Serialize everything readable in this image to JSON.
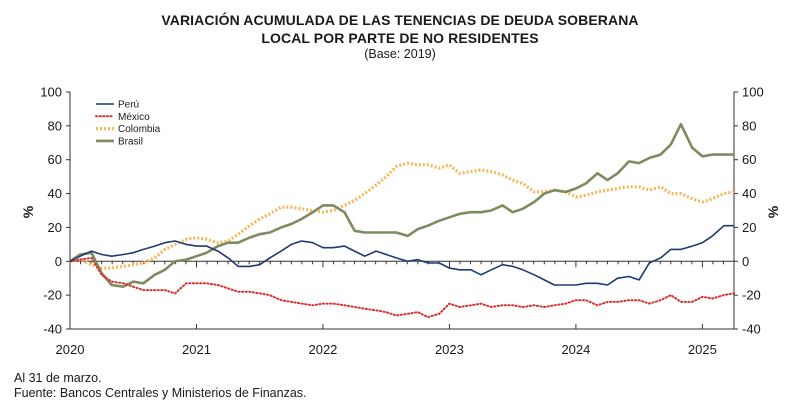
{
  "header": {
    "title_line1": "VARIACIÓN ACUMULADA DE LAS TENENCIAS DE DEUDA SOBERANA",
    "title_line2": "LOCAL POR PARTE DE NO RESIDENTES",
    "subtitle": "(Base: 2019)"
  },
  "footer": {
    "note": "Al 31 de marzo.",
    "source": "Fuente: Bancos Centrales y Ministerios de Finanzas."
  },
  "chart_data": {
    "type": "line",
    "ylabel_left": "%",
    "ylabel_right": "%",
    "ylim": [
      -40,
      100
    ],
    "yticks": [
      -40,
      -20,
      0,
      20,
      40,
      60,
      80,
      100
    ],
    "xlim": [
      2020.0,
      2025.25
    ],
    "x_ticks": [
      {
        "label": "2020",
        "x": 2020.0
      },
      {
        "label": "2021",
        "x": 2021.0
      },
      {
        "label": "2022",
        "x": 2022.0
      },
      {
        "label": "2023",
        "x": 2023.0
      },
      {
        "label": "2024",
        "x": 2024.0
      },
      {
        "label": "2025",
        "x": 2025.0
      }
    ],
    "grid": false,
    "legend_position": "top-left",
    "series": [
      {
        "name": "Perú",
        "color": "#1f3a75",
        "style": "solid",
        "points": [
          [
            2020.0,
            0
          ],
          [
            2020.08,
            3
          ],
          [
            2020.17,
            6
          ],
          [
            2020.25,
            4
          ],
          [
            2020.33,
            3
          ],
          [
            2020.42,
            4
          ],
          [
            2020.5,
            5
          ],
          [
            2020.58,
            7
          ],
          [
            2020.67,
            9
          ],
          [
            2020.75,
            11
          ],
          [
            2020.83,
            12
          ],
          [
            2020.92,
            10
          ],
          [
            2021.0,
            9
          ],
          [
            2021.08,
            9
          ],
          [
            2021.17,
            6
          ],
          [
            2021.25,
            2
          ],
          [
            2021.33,
            -3
          ],
          [
            2021.42,
            -3
          ],
          [
            2021.5,
            -2
          ],
          [
            2021.58,
            2
          ],
          [
            2021.67,
            6
          ],
          [
            2021.75,
            10
          ],
          [
            2021.83,
            12
          ],
          [
            2021.92,
            11
          ],
          [
            2022.0,
            8
          ],
          [
            2022.08,
            8
          ],
          [
            2022.17,
            9
          ],
          [
            2022.25,
            6
          ],
          [
            2022.33,
            3
          ],
          [
            2022.42,
            6
          ],
          [
            2022.5,
            4
          ],
          [
            2022.58,
            2
          ],
          [
            2022.67,
            0
          ],
          [
            2022.75,
            1
          ],
          [
            2022.83,
            -1
          ],
          [
            2022.92,
            -1
          ],
          [
            2023.0,
            -4
          ],
          [
            2023.08,
            -5
          ],
          [
            2023.17,
            -5
          ],
          [
            2023.25,
            -8
          ],
          [
            2023.33,
            -5
          ],
          [
            2023.42,
            -2
          ],
          [
            2023.5,
            -3
          ],
          [
            2023.58,
            -5
          ],
          [
            2023.67,
            -8
          ],
          [
            2023.75,
            -11
          ],
          [
            2023.83,
            -14
          ],
          [
            2023.92,
            -14
          ],
          [
            2024.0,
            -14
          ],
          [
            2024.08,
            -13
          ],
          [
            2024.17,
            -13
          ],
          [
            2024.25,
            -14
          ],
          [
            2024.33,
            -10
          ],
          [
            2024.42,
            -9
          ],
          [
            2024.5,
            -11
          ],
          [
            2024.58,
            -1
          ],
          [
            2024.67,
            2
          ],
          [
            2024.75,
            7
          ],
          [
            2024.83,
            7
          ],
          [
            2024.92,
            9
          ],
          [
            2025.0,
            11
          ],
          [
            2025.08,
            15
          ],
          [
            2025.17,
            21
          ],
          [
            2025.25,
            21
          ]
        ]
      },
      {
        "name": "México",
        "color": "#d9302e",
        "style": "dotted",
        "points": [
          [
            2020.0,
            0
          ],
          [
            2020.08,
            1
          ],
          [
            2020.17,
            2
          ],
          [
            2020.25,
            -8
          ],
          [
            2020.33,
            -12
          ],
          [
            2020.42,
            -13
          ],
          [
            2020.5,
            -15
          ],
          [
            2020.58,
            -17
          ],
          [
            2020.67,
            -17
          ],
          [
            2020.75,
            -17
          ],
          [
            2020.83,
            -19
          ],
          [
            2020.92,
            -13
          ],
          [
            2021.0,
            -13
          ],
          [
            2021.08,
            -13
          ],
          [
            2021.17,
            -14
          ],
          [
            2021.25,
            -16
          ],
          [
            2021.33,
            -18
          ],
          [
            2021.42,
            -18
          ],
          [
            2021.5,
            -19
          ],
          [
            2021.58,
            -20
          ],
          [
            2021.67,
            -23
          ],
          [
            2021.75,
            -24
          ],
          [
            2021.83,
            -25
          ],
          [
            2021.92,
            -26
          ],
          [
            2022.0,
            -25
          ],
          [
            2022.08,
            -25
          ],
          [
            2022.17,
            -26
          ],
          [
            2022.25,
            -27
          ],
          [
            2022.33,
            -28
          ],
          [
            2022.42,
            -29
          ],
          [
            2022.5,
            -30
          ],
          [
            2022.58,
            -32
          ],
          [
            2022.67,
            -31
          ],
          [
            2022.75,
            -30
          ],
          [
            2022.83,
            -33
          ],
          [
            2022.92,
            -31
          ],
          [
            2023.0,
            -25
          ],
          [
            2023.08,
            -27
          ],
          [
            2023.17,
            -26
          ],
          [
            2023.25,
            -25
          ],
          [
            2023.33,
            -27
          ],
          [
            2023.42,
            -26
          ],
          [
            2023.5,
            -26
          ],
          [
            2023.58,
            -27
          ],
          [
            2023.67,
            -26
          ],
          [
            2023.75,
            -27
          ],
          [
            2023.83,
            -26
          ],
          [
            2023.92,
            -25
          ],
          [
            2024.0,
            -23
          ],
          [
            2024.08,
            -23
          ],
          [
            2024.17,
            -26
          ],
          [
            2024.25,
            -24
          ],
          [
            2024.33,
            -24
          ],
          [
            2024.42,
            -23
          ],
          [
            2024.5,
            -23
          ],
          [
            2024.58,
            -25
          ],
          [
            2024.67,
            -23
          ],
          [
            2024.75,
            -20
          ],
          [
            2024.83,
            -24
          ],
          [
            2024.92,
            -24
          ],
          [
            2025.0,
            -21
          ],
          [
            2025.08,
            -22
          ],
          [
            2025.17,
            -20
          ],
          [
            2025.25,
            -19
          ]
        ]
      },
      {
        "name": "Colombia",
        "color": "#f4b75a",
        "style": "dotted-thick",
        "points": [
          [
            2020.0,
            0
          ],
          [
            2020.08,
            1
          ],
          [
            2020.17,
            -2
          ],
          [
            2020.25,
            -4
          ],
          [
            2020.33,
            -4
          ],
          [
            2020.42,
            -3
          ],
          [
            2020.5,
            -2
          ],
          [
            2020.58,
            -1
          ],
          [
            2020.67,
            2
          ],
          [
            2020.75,
            7
          ],
          [
            2020.83,
            10
          ],
          [
            2020.92,
            13
          ],
          [
            2021.0,
            14
          ],
          [
            2021.08,
            13
          ],
          [
            2021.17,
            11
          ],
          [
            2021.25,
            12
          ],
          [
            2021.33,
            16
          ],
          [
            2021.42,
            21
          ],
          [
            2021.5,
            25
          ],
          [
            2021.58,
            28
          ],
          [
            2021.67,
            32
          ],
          [
            2021.75,
            32
          ],
          [
            2021.83,
            31
          ],
          [
            2021.92,
            30
          ],
          [
            2022.0,
            29
          ],
          [
            2022.08,
            30
          ],
          [
            2022.17,
            33
          ],
          [
            2022.25,
            36
          ],
          [
            2022.33,
            40
          ],
          [
            2022.42,
            45
          ],
          [
            2022.5,
            50
          ],
          [
            2022.58,
            56
          ],
          [
            2022.67,
            58
          ],
          [
            2022.75,
            57
          ],
          [
            2022.83,
            57
          ],
          [
            2022.92,
            55
          ],
          [
            2023.0,
            57
          ],
          [
            2023.08,
            52
          ],
          [
            2023.17,
            53
          ],
          [
            2023.25,
            54
          ],
          [
            2023.33,
            53
          ],
          [
            2023.42,
            51
          ],
          [
            2023.5,
            48
          ],
          [
            2023.58,
            46
          ],
          [
            2023.67,
            41
          ],
          [
            2023.75,
            41
          ],
          [
            2023.83,
            42
          ],
          [
            2023.92,
            41
          ],
          [
            2024.0,
            38
          ],
          [
            2024.08,
            39
          ],
          [
            2024.17,
            41
          ],
          [
            2024.25,
            42
          ],
          [
            2024.33,
            43
          ],
          [
            2024.42,
            44
          ],
          [
            2024.5,
            44
          ],
          [
            2024.58,
            42
          ],
          [
            2024.67,
            44
          ],
          [
            2024.75,
            40
          ],
          [
            2024.83,
            40
          ],
          [
            2024.92,
            37
          ],
          [
            2025.0,
            35
          ],
          [
            2025.08,
            37
          ],
          [
            2025.17,
            40
          ],
          [
            2025.25,
            41
          ]
        ]
      },
      {
        "name": "Brasil",
        "color": "#7d8c5f",
        "style": "solid-thick",
        "points": [
          [
            2020.0,
            0
          ],
          [
            2020.08,
            4
          ],
          [
            2020.17,
            5
          ],
          [
            2020.25,
            -7
          ],
          [
            2020.33,
            -14
          ],
          [
            2020.42,
            -15
          ],
          [
            2020.5,
            -12
          ],
          [
            2020.58,
            -13
          ],
          [
            2020.67,
            -8
          ],
          [
            2020.75,
            -5
          ],
          [
            2020.83,
            0
          ],
          [
            2020.92,
            1
          ],
          [
            2021.0,
            3
          ],
          [
            2021.08,
            5
          ],
          [
            2021.17,
            9
          ],
          [
            2021.25,
            11
          ],
          [
            2021.33,
            11
          ],
          [
            2021.42,
            14
          ],
          [
            2021.5,
            16
          ],
          [
            2021.58,
            17
          ],
          [
            2021.67,
            20
          ],
          [
            2021.75,
            22
          ],
          [
            2021.83,
            25
          ],
          [
            2021.92,
            29
          ],
          [
            2022.0,
            33
          ],
          [
            2022.08,
            33
          ],
          [
            2022.17,
            29
          ],
          [
            2022.25,
            18
          ],
          [
            2022.33,
            17
          ],
          [
            2022.42,
            17
          ],
          [
            2022.5,
            17
          ],
          [
            2022.58,
            17
          ],
          [
            2022.67,
            15
          ],
          [
            2022.75,
            19
          ],
          [
            2022.83,
            21
          ],
          [
            2022.92,
            24
          ],
          [
            2023.0,
            26
          ],
          [
            2023.08,
            28
          ],
          [
            2023.17,
            29
          ],
          [
            2023.25,
            29
          ],
          [
            2023.33,
            30
          ],
          [
            2023.42,
            33
          ],
          [
            2023.5,
            29
          ],
          [
            2023.58,
            31
          ],
          [
            2023.67,
            35
          ],
          [
            2023.75,
            40
          ],
          [
            2023.83,
            42
          ],
          [
            2023.92,
            41
          ],
          [
            2024.0,
            43
          ],
          [
            2024.08,
            46
          ],
          [
            2024.17,
            52
          ],
          [
            2024.25,
            48
          ],
          [
            2024.33,
            52
          ],
          [
            2024.42,
            59
          ],
          [
            2024.5,
            58
          ],
          [
            2024.58,
            61
          ],
          [
            2024.67,
            63
          ],
          [
            2024.75,
            69
          ],
          [
            2024.83,
            81
          ],
          [
            2024.92,
            67
          ],
          [
            2025.0,
            62
          ],
          [
            2025.08,
            63
          ],
          [
            2025.17,
            63
          ],
          [
            2025.25,
            63
          ]
        ]
      }
    ]
  }
}
